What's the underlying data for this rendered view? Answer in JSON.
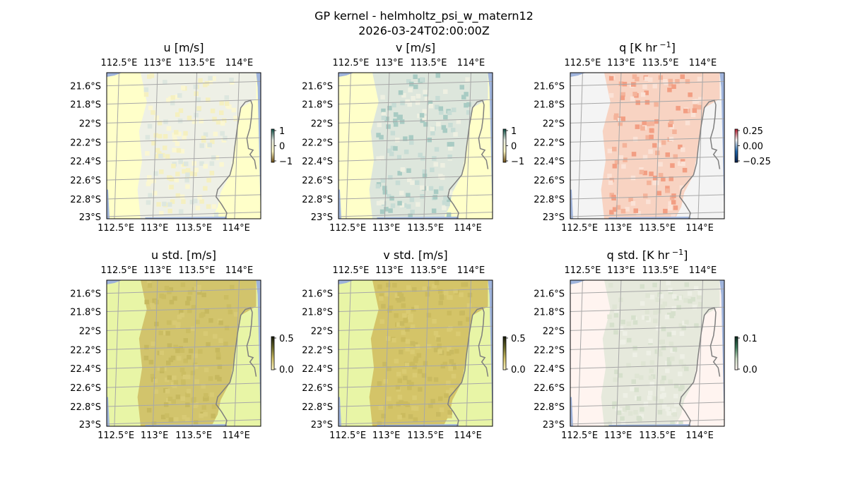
{
  "figure": {
    "title": "GP kernel - helmholtz_psi_w_matern12",
    "timestamp": "2026-03-24T02:00:00Z"
  },
  "chart_data": [
    {
      "type": "heatmap",
      "title": "u [m/s]",
      "lon_ticks": [
        "112.5°E",
        "113°E",
        "113.5°E",
        "114°E"
      ],
      "lat_ticks": [
        "21.6°S",
        "21.8°S",
        "22°S",
        "22.2°S",
        "22.4°S",
        "22.6°S",
        "22.8°S",
        "23°S"
      ],
      "colorbar": {
        "ticks": [
          "1",
          "0",
          "−1"
        ],
        "range": [
          -1,
          1
        ],
        "colors": [
          "#0b4d45",
          "#e8ece2",
          "#fff9c4",
          "#6b4c13"
        ]
      },
      "background": "#ffffc9",
      "field": "#eef0e6",
      "speckle": [
        "#f5f0c0",
        "#dde7df",
        "#fbf7d2"
      ]
    },
    {
      "type": "heatmap",
      "title": "v [m/s]",
      "lon_ticks": [
        "112.5°E",
        "113°E",
        "113.5°E",
        "114°E"
      ],
      "lat_ticks": [
        "21.6°S",
        "21.8°S",
        "22°S",
        "22.2°S",
        "22.4°S",
        "22.6°S",
        "22.8°S",
        "23°S"
      ],
      "colorbar": {
        "ticks": [
          "1",
          "0",
          "−1"
        ],
        "range": [
          -1,
          1
        ],
        "colors": [
          "#0b4d45",
          "#e8ece2",
          "#fff9c4",
          "#6b4c13"
        ]
      },
      "background": "#ffffc9",
      "field": "#dde6dc",
      "speckle": [
        "#c7dcd5",
        "#a8cbc3",
        "#eef0e2"
      ]
    },
    {
      "type": "heatmap",
      "title": "q [K hr",
      "title_exp": "−1",
      "title_end": "]",
      "lon_ticks": [
        "112.5°E",
        "113°E",
        "113.5°E",
        "114°E"
      ],
      "lat_ticks": [
        "21.6°S",
        "21.8°S",
        "22°S",
        "22.2°S",
        "22.4°S",
        "22.6°S",
        "22.8°S",
        "23°S"
      ],
      "colorbar": {
        "ticks": [
          "0.25",
          "0.00",
          "−0.25"
        ],
        "range": [
          -0.25,
          0.25
        ],
        "colors": [
          "#b2182b",
          "#f7f7f7",
          "#2166ac",
          "#08204a"
        ]
      },
      "background": "#f4f4f4",
      "field": "#f8d3c2",
      "speckle": [
        "#f4b39a",
        "#fbe2d6",
        "#f29e83"
      ]
    },
    {
      "type": "heatmap",
      "title": "u std. [m/s]",
      "lon_ticks": [
        "112.5°E",
        "113°E",
        "113.5°E",
        "114°E"
      ],
      "lat_ticks": [
        "21.6°S",
        "21.8°S",
        "22°S",
        "22.2°S",
        "22.4°S",
        "22.6°S",
        "22.8°S",
        "23°S"
      ],
      "colorbar": {
        "ticks": [
          "0.5",
          "0.0"
        ],
        "range": [
          0,
          0.5
        ],
        "colors": [
          "#171a0a",
          "#6b6a2a",
          "#d4c46a",
          "#fff7c4"
        ]
      },
      "background": "#e8f5a6",
      "field": "#d2c46c",
      "speckle": [
        "#cbbd62",
        "#d8ca74",
        "#c6b85e"
      ]
    },
    {
      "type": "heatmap",
      "title": "v std. [m/s]",
      "lon_ticks": [
        "112.5°E",
        "113°E",
        "113.5°E",
        "114°E"
      ],
      "lat_ticks": [
        "21.6°S",
        "21.8°S",
        "22°S",
        "22.2°S",
        "22.4°S",
        "22.6°S",
        "22.8°S",
        "23°S"
      ],
      "colorbar": {
        "ticks": [
          "0.5",
          "0.0"
        ],
        "range": [
          0,
          0.5
        ],
        "colors": [
          "#171a0a",
          "#6b6a2a",
          "#d4c46a",
          "#fff7c4"
        ]
      },
      "background": "#e8f5a6",
      "field": "#d4c468",
      "speckle": [
        "#cbbb5e",
        "#dacb72",
        "#c9ba60"
      ]
    },
    {
      "type": "heatmap",
      "title": "q std. [K hr",
      "title_exp": "−1",
      "title_end": "]",
      "lon_ticks": [
        "112.5°E",
        "113°E",
        "113.5°E",
        "114°E"
      ],
      "lat_ticks": [
        "21.6°S",
        "21.8°S",
        "22°S",
        "22.2°S",
        "22.4°S",
        "22.6°S",
        "22.8°S",
        "23°S"
      ],
      "colorbar": {
        "ticks": [
          "0.1",
          "0.0"
        ],
        "range": [
          0,
          0.1
        ],
        "colors": [
          "#0a2a20",
          "#3c7a5a",
          "#cfe0c8",
          "#fff4f0"
        ]
      },
      "background": "#fff4f0",
      "field": "#e6e9dc",
      "speckle": [
        "#d6e0cc",
        "#eef0e6",
        "#dfe5d4"
      ]
    }
  ]
}
